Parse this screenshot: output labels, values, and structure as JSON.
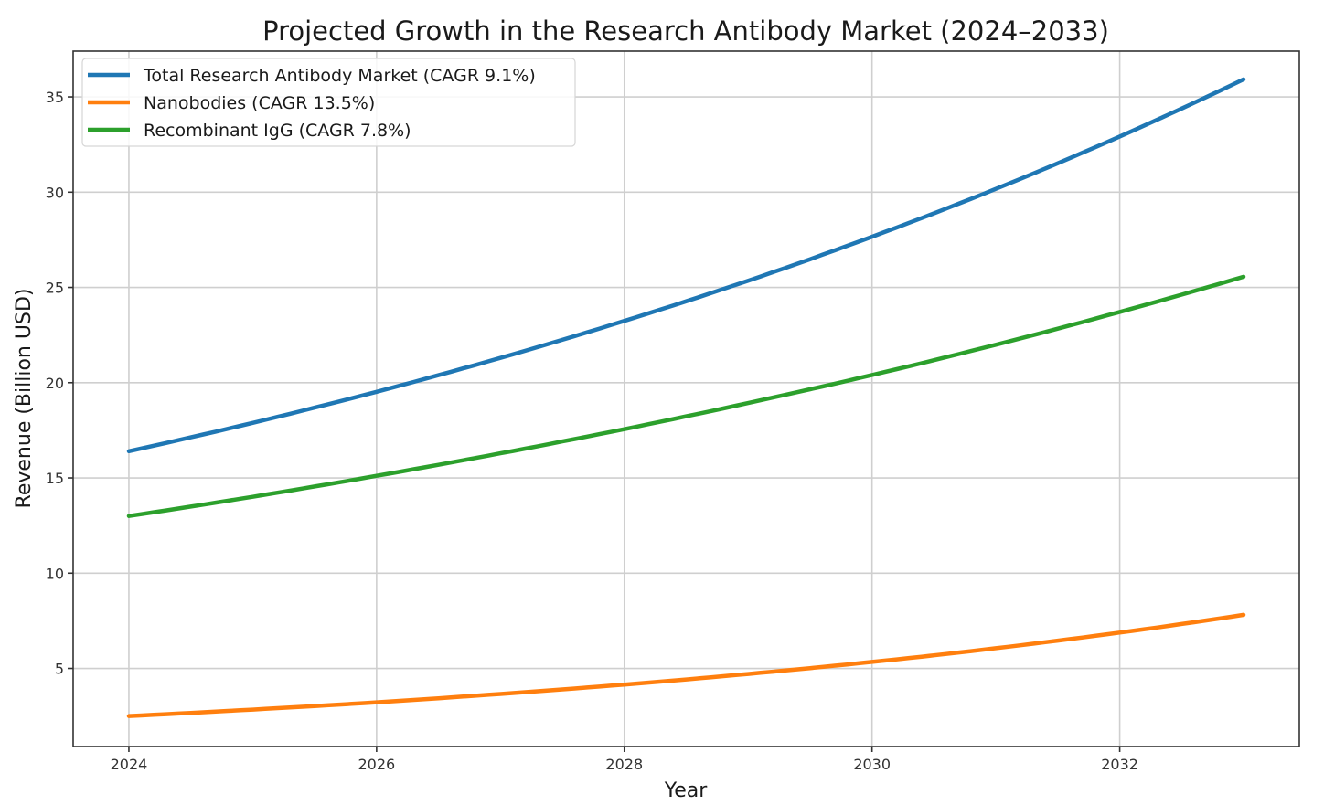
{
  "chart_data": {
    "type": "line",
    "title": "Projected Growth in the Research Antibody Market (2024–2033)",
    "xlabel": "Year",
    "ylabel": "Revenue (Billion USD)",
    "x": [
      2024,
      2025,
      2026,
      2027,
      2028,
      2029,
      2030,
      2031,
      2032,
      2033
    ],
    "xlim": [
      2023.55,
      2033.45
    ],
    "ylim": [
      0.9,
      37.4
    ],
    "xticks": [
      2024,
      2026,
      2028,
      2030,
      2032
    ],
    "yticks": [
      5,
      10,
      15,
      20,
      25,
      30,
      35
    ],
    "grid": true,
    "legend_position": "top-left",
    "series": [
      {
        "name": "Total Research Antibody Market (CAGR 9.1%)",
        "color": "#1f77b4",
        "values": [
          16.4,
          17.89,
          19.52,
          21.3,
          23.24,
          25.35,
          27.66,
          30.17,
          32.92,
          35.92
        ]
      },
      {
        "name": "Nanobodies (CAGR 13.5%)",
        "color": "#ff7f0e",
        "values": [
          2.5,
          2.84,
          3.22,
          3.66,
          4.15,
          4.71,
          5.34,
          6.06,
          6.88,
          7.81
        ]
      },
      {
        "name": "Recombinant IgG (CAGR 7.8%)",
        "color": "#2ca02c",
        "values": [
          13.0,
          14.01,
          15.11,
          16.29,
          17.56,
          18.93,
          20.4,
          21.99,
          23.71,
          25.56
        ]
      }
    ]
  }
}
